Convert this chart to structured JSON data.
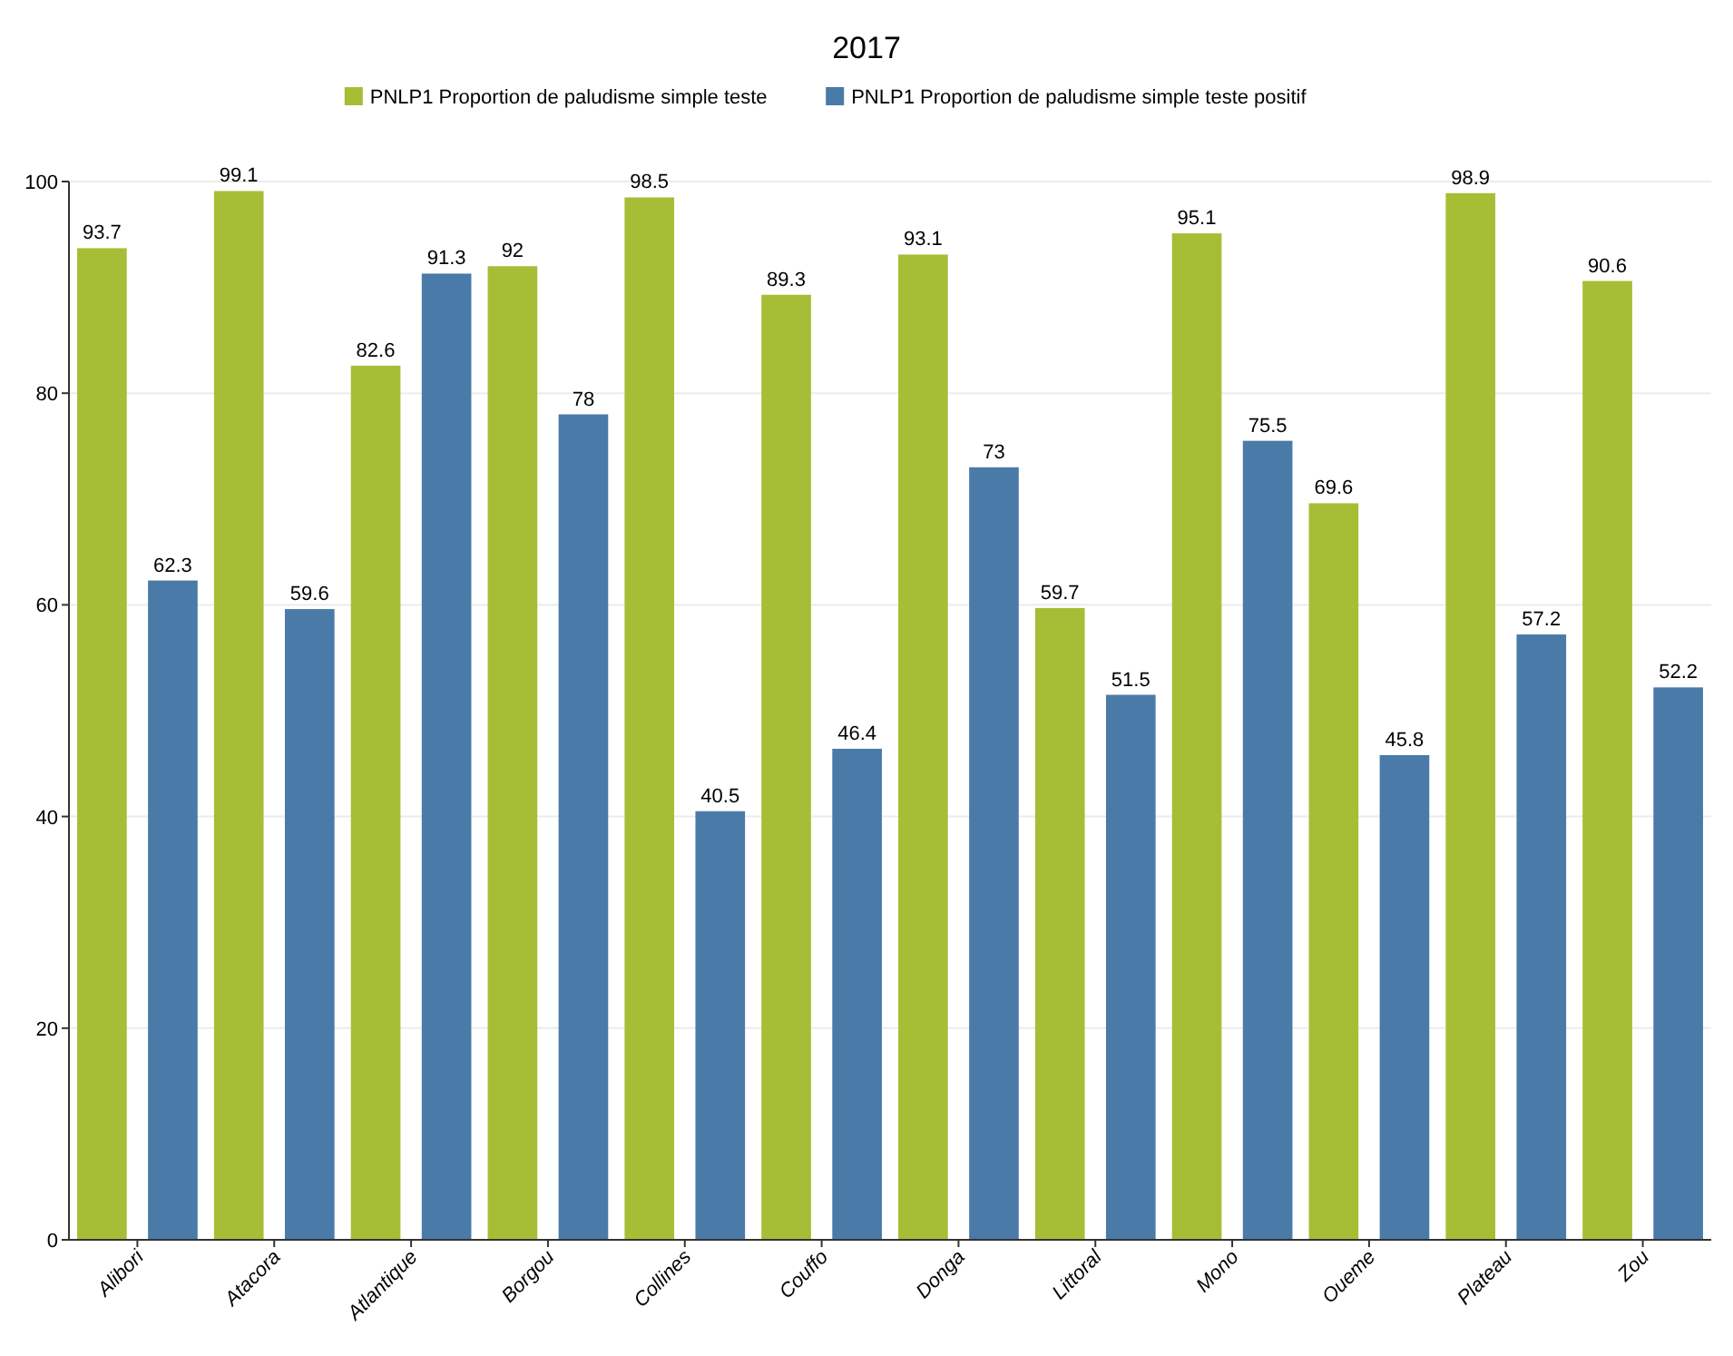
{
  "chart_data": {
    "type": "bar",
    "title": "2017",
    "categories": [
      "Alibori",
      "Atacora",
      "Atlantique",
      "Borgou",
      "Collines",
      "Couffo",
      "Donga",
      "Littoral",
      "Mono",
      "Oueme",
      "Plateau",
      "Zou"
    ],
    "series": [
      {
        "name": "PNLP1 Proportion de paludisme simple teste",
        "color": "#a5be35",
        "values": [
          93.7,
          99.1,
          82.6,
          92,
          98.5,
          89.3,
          93.1,
          59.7,
          95.1,
          69.6,
          98.9,
          90.6
        ]
      },
      {
        "name": "PNLP1 Proportion de paludisme simple teste positif",
        "color": "#4a7aa8",
        "values": [
          62.3,
          59.6,
          91.3,
          78,
          40.5,
          46.4,
          73,
          51.5,
          75.5,
          45.8,
          57.2,
          52.2
        ]
      }
    ],
    "ylim": [
      0,
      100
    ],
    "yticks": [
      0,
      20,
      40,
      60,
      80,
      100
    ],
    "grid": "y",
    "legend": "top",
    "data_labels": true
  }
}
